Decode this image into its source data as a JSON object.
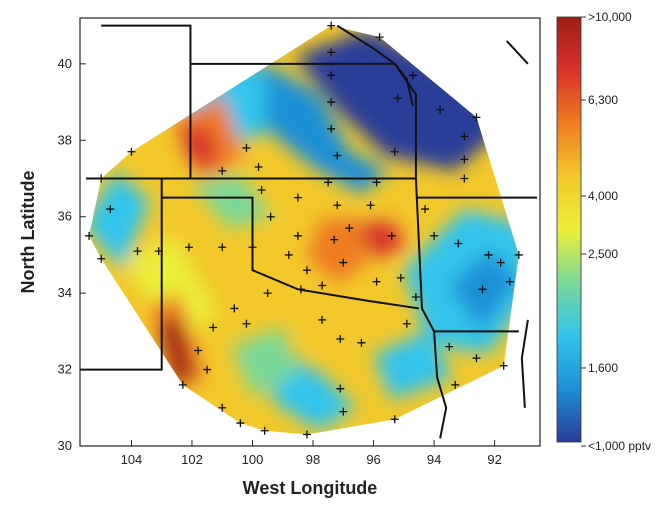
{
  "chart_data": {
    "type": "heatmap",
    "title": "",
    "xlabel": "West Longitude",
    "ylabel": "North Latitude",
    "xlim": [
      105.7,
      90.5
    ],
    "ylim": [
      30,
      41.2
    ],
    "xticks": [
      "104",
      "102",
      "100",
      "98",
      "96",
      "94",
      "92"
    ],
    "yticks": [
      "30",
      "32",
      "34",
      "36",
      "38",
      "40"
    ],
    "colorbar": {
      "labels": [
        ">10,000",
        "6,300",
        "4,000",
        "2,500",
        "1,600",
        "<1,000 pptv"
      ],
      "colors": [
        "#9e1e14",
        "#d8332a",
        "#ef7b22",
        "#f2c82b",
        "#ecef3a",
        "#7ad89a",
        "#33c4ec",
        "#1d8fd6",
        "#2a3c98"
      ]
    },
    "grid": false,
    "stations": [
      [
        97.4,
        41.0
      ],
      [
        95.8,
        40.7
      ],
      [
        97.4,
        40.3
      ],
      [
        97.4,
        39.7
      ],
      [
        94.7,
        39.7
      ],
      [
        97.4,
        39.0
      ],
      [
        95.2,
        39.1
      ],
      [
        93.8,
        38.8
      ],
      [
        92.6,
        38.6
      ],
      [
        97.4,
        38.3
      ],
      [
        93.0,
        38.1
      ],
      [
        104.0,
        37.7
      ],
      [
        100.2,
        37.8
      ],
      [
        99.8,
        37.3
      ],
      [
        97.2,
        37.6
      ],
      [
        95.3,
        37.7
      ],
      [
        93.0,
        37.5
      ],
      [
        105.0,
        37.0
      ],
      [
        101.0,
        37.2
      ],
      [
        97.5,
        36.9
      ],
      [
        93.0,
        37.0
      ],
      [
        104.7,
        36.2
      ],
      [
        99.7,
        36.7
      ],
      [
        98.5,
        36.5
      ],
      [
        97.2,
        36.3
      ],
      [
        96.1,
        36.3
      ],
      [
        94.3,
        36.2
      ],
      [
        105.4,
        35.5
      ],
      [
        105.0,
        34.9
      ],
      [
        103.8,
        35.1
      ],
      [
        103.1,
        35.1
      ],
      [
        102.1,
        35.2
      ],
      [
        101.0,
        35.2
      ],
      [
        100.0,
        35.2
      ],
      [
        98.5,
        35.5
      ],
      [
        99.4,
        36.0
      ],
      [
        98.8,
        35.0
      ],
      [
        98.2,
        34.6
      ],
      [
        97.3,
        35.4
      ],
      [
        96.8,
        35.7
      ],
      [
        95.4,
        35.5
      ],
      [
        94.0,
        35.5
      ],
      [
        93.2,
        35.3
      ],
      [
        92.2,
        35.0
      ],
      [
        91.8,
        34.8
      ],
      [
        91.2,
        35.0
      ],
      [
        97.7,
        34.2
      ],
      [
        97.0,
        34.8
      ],
      [
        95.9,
        34.3
      ],
      [
        95.1,
        34.4
      ],
      [
        94.6,
        33.9
      ],
      [
        92.4,
        34.1
      ],
      [
        91.5,
        34.3
      ],
      [
        99.5,
        34.0
      ],
      [
        100.6,
        33.6
      ],
      [
        101.3,
        33.1
      ],
      [
        101.8,
        32.5
      ],
      [
        101.5,
        32.0
      ],
      [
        100.2,
        33.2
      ],
      [
        97.7,
        33.3
      ],
      [
        97.1,
        32.8
      ],
      [
        96.4,
        32.7
      ],
      [
        94.9,
        33.2
      ],
      [
        93.5,
        32.6
      ],
      [
        92.6,
        32.3
      ],
      [
        91.7,
        32.1
      ],
      [
        102.3,
        31.6
      ],
      [
        101.0,
        31.0
      ],
      [
        100.4,
        30.6
      ],
      [
        99.6,
        30.4
      ],
      [
        98.2,
        30.3
      ],
      [
        97.1,
        31.5
      ],
      [
        97.0,
        30.9
      ],
      [
        95.3,
        30.7
      ],
      [
        93.3,
        31.6
      ],
      [
        95.9,
        36.9
      ],
      [
        98.4,
        34.1
      ]
    ]
  }
}
